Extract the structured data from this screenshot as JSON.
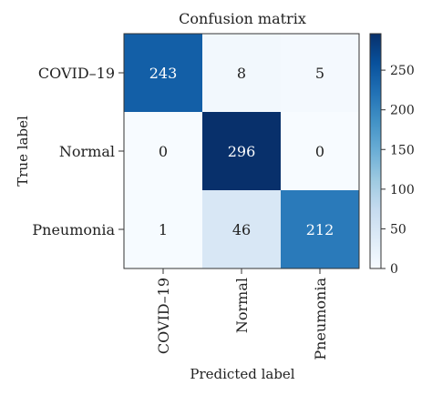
{
  "chart_data": {
    "type": "heatmap",
    "title": "Confusion matrix",
    "xlabel": "Predicted label",
    "ylabel": "True label",
    "x_categories": [
      "COVID–19",
      "Normal",
      "Pneumonia"
    ],
    "y_categories": [
      "COVID–19",
      "Normal",
      "Pneumonia"
    ],
    "values": [
      [
        243,
        8,
        5
      ],
      [
        0,
        296,
        0
      ],
      [
        1,
        46,
        212
      ]
    ],
    "colorbar": {
      "min": 0,
      "max": 296,
      "ticks": [
        0,
        50,
        100,
        150,
        200,
        250
      ],
      "colormap": "Blues"
    },
    "grid": false
  }
}
